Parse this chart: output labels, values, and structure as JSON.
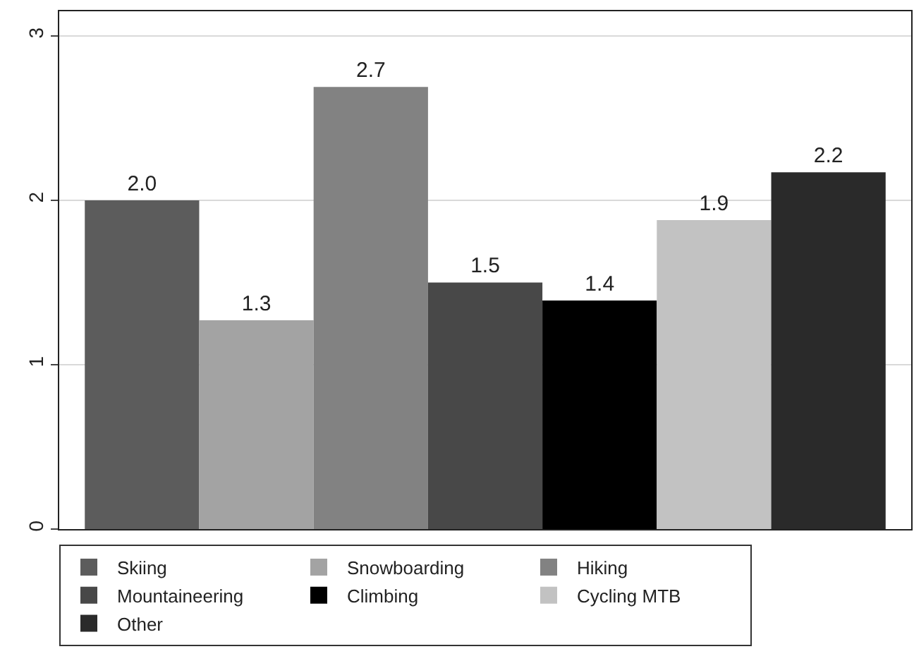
{
  "chart_data": {
    "type": "bar",
    "categories": [
      null
    ],
    "series": [
      {
        "name": "Skiing",
        "color": "#5c5c5c",
        "values": [
          2.0
        ],
        "value_labels": [
          "2.0"
        ]
      },
      {
        "name": "Snowboarding",
        "color": "#a3a3a3",
        "values": [
          1.27
        ],
        "value_labels": [
          "1.3"
        ]
      },
      {
        "name": "Hiking",
        "color": "#828282",
        "values": [
          2.69
        ],
        "value_labels": [
          "2.7"
        ]
      },
      {
        "name": "Mountaineering",
        "color": "#484848",
        "values": [
          1.5
        ],
        "value_labels": [
          "1.5"
        ]
      },
      {
        "name": "Climbing",
        "color": "#000000",
        "values": [
          1.39
        ],
        "value_labels": [
          "1.4"
        ]
      },
      {
        "name": "Cycling MTB",
        "color": "#c2c2c2",
        "values": [
          1.88
        ],
        "value_labels": [
          "1.9"
        ]
      },
      {
        "name": "Other",
        "color": "#2a2a2a",
        "values": [
          2.17
        ],
        "value_labels": [
          "2.2"
        ]
      }
    ],
    "ylim": [
      0,
      3.15
    ],
    "yticks": [
      0,
      1,
      2,
      3
    ],
    "grid": "y",
    "legend": "bottom"
  }
}
